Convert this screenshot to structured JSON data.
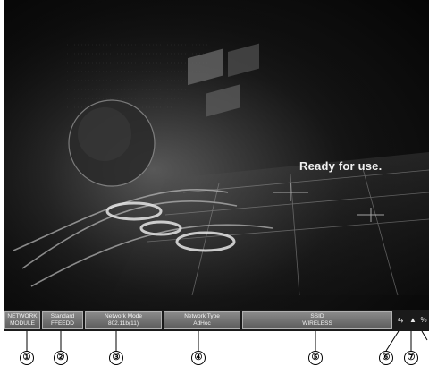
{
  "screen": {
    "message": "Ready for use."
  },
  "status_bar": {
    "network_module": {
      "line1": "NETWORK",
      "line2": "MODULE"
    },
    "standard": {
      "label": "Standard",
      "value": "FFEEDD"
    },
    "network_mode": {
      "label": "Network Mode",
      "value": "802.11b(11)"
    },
    "network_type": {
      "label": "Network Type",
      "value": "AdHoc"
    },
    "ssid": {
      "label": "SSID",
      "value": "WIRELESS"
    },
    "icons": [
      "link-icon",
      "signal-icon",
      "percent-icon"
    ]
  },
  "callouts": [
    "①",
    "②",
    "③",
    "④",
    "⑤",
    "⑥",
    "⑦"
  ]
}
